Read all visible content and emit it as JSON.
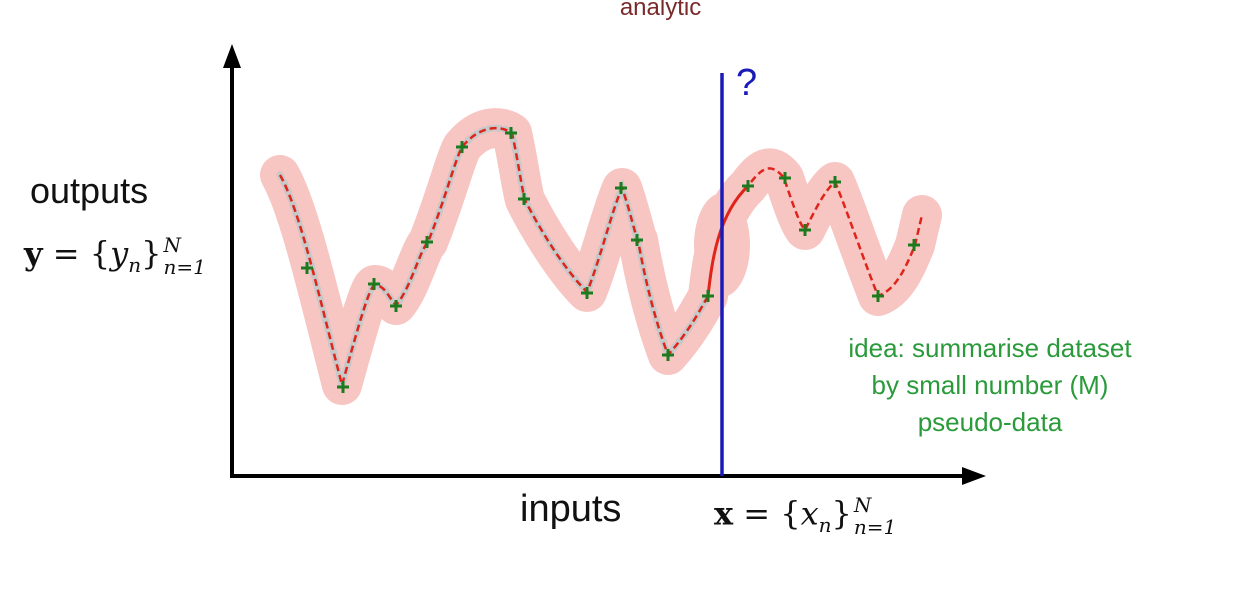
{
  "title": "analytic",
  "labels": {
    "outputs": "outputs",
    "inputs": "inputs",
    "query": "?"
  },
  "math": {
    "y_symbol": "y",
    "y_eq": " = {",
    "y_var": "y",
    "y_sub": "n",
    "y_close": "}",
    "y_sup": "N",
    "y_range": "n=1",
    "x_symbol": "x",
    "x_eq": " = {",
    "x_var": "x",
    "x_sub": "n",
    "x_close": "}",
    "x_sup": "N",
    "x_range": "n=1"
  },
  "idea": {
    "line1": "idea: summarise dataset",
    "line2": "by small number (M)",
    "line3": "pseudo-data"
  },
  "colors": {
    "title": "#7a2a2a",
    "uncertainty_band": "#f7c5c2",
    "mean_curve": "#e0241b",
    "data_point": "#1e7a1e",
    "query_line": "#1a1ab8",
    "idea_text": "#2a9a3a",
    "axes": "#000000"
  }
}
